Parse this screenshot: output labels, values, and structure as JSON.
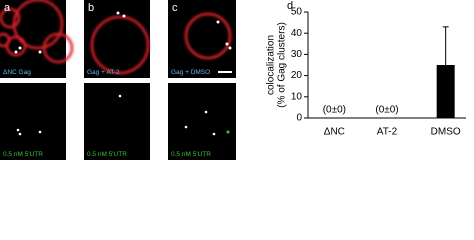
{
  "panels": [
    {
      "label": "a",
      "caption_top": "ΔNC Gag",
      "caption_bottom": "0.5 nM 5'UTR"
    },
    {
      "label": "b",
      "caption_top": "Gag + AT-2",
      "caption_bottom": "0.5 nM 5'UTR"
    },
    {
      "label": "c",
      "caption_top": "Gag + DMSO",
      "caption_bottom": "0.5 nM 5'UTR"
    }
  ],
  "chart_data": {
    "type": "bar",
    "panel_label": "d",
    "y_label": [
      "colocalization",
      "(% of Gag clusters)"
    ],
    "categories": [
      "ΔNC",
      "AT-2",
      "DMSO"
    ],
    "values": [
      0,
      0,
      25
    ],
    "errors": [
      0,
      0,
      18
    ],
    "value_labels": [
      "(0±0)",
      "(0±0)",
      null
    ],
    "color": "#000000",
    "ylim": [
      0,
      50
    ],
    "yticks": [
      0,
      10,
      20,
      30,
      40,
      50
    ]
  }
}
